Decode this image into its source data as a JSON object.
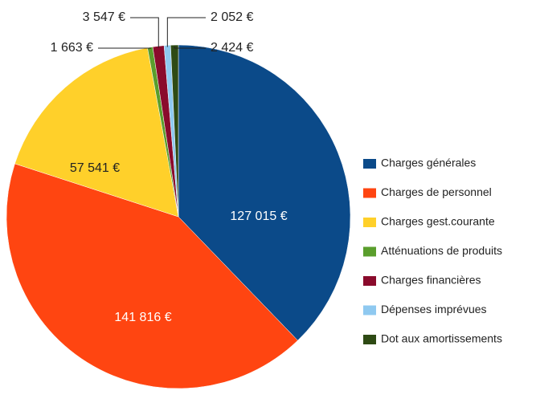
{
  "chart_data": {
    "type": "pie",
    "categories": [
      "Charges générales",
      "Charges de personnel",
      "Charges gest.courante",
      "Atténuations de produits",
      "Charges financières",
      "Dépenses imprévues",
      "Dot aux amortissements"
    ],
    "values": [
      127015,
      141816,
      57541,
      1663,
      3547,
      2052,
      2424
    ],
    "value_labels": [
      "127 015 €",
      "141 816 €",
      "57 541 €",
      "1 663 €",
      "3 547 €",
      "2 052 €",
      "2 424 €"
    ],
    "colors": [
      "#0b4a89",
      "#ff4511",
      "#ffd02a",
      "#5a9e2c",
      "#8a0b2c",
      "#8fc9f0",
      "#2e4a14"
    ],
    "legend": "right"
  }
}
